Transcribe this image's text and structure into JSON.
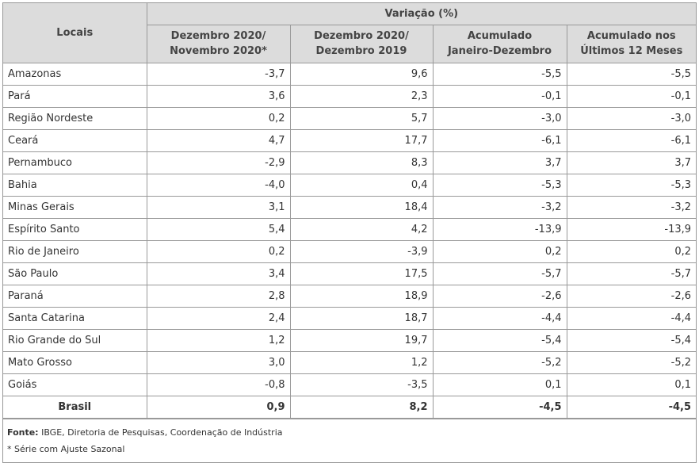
{
  "header": {
    "locais": "Locais",
    "variacao": "Variação (%)",
    "columns": [
      [
        "Dezembro 2020/",
        "Novembro 2020*"
      ],
      [
        "Dezembro 2020/",
        "Dezembro 2019"
      ],
      [
        "Acumulado",
        "Janeiro-Dezembro"
      ],
      [
        "Acumulado nos",
        "Últimos 12 Meses"
      ]
    ]
  },
  "rows": [
    {
      "local": "Amazonas",
      "values": [
        "-3,7",
        "9,6",
        "-5,5",
        "-5,5"
      ]
    },
    {
      "local": "Pará",
      "values": [
        "3,6",
        "2,3",
        "-0,1",
        "-0,1"
      ]
    },
    {
      "local": "Região Nordeste",
      "values": [
        "0,2",
        "5,7",
        "-3,0",
        "-3,0"
      ]
    },
    {
      "local": "Ceará",
      "values": [
        "4,7",
        "17,7",
        "-6,1",
        "-6,1"
      ]
    },
    {
      "local": "Pernambuco",
      "values": [
        "-2,9",
        "8,3",
        "3,7",
        "3,7"
      ]
    },
    {
      "local": "Bahia",
      "values": [
        "-4,0",
        "0,4",
        "-5,3",
        "-5,3"
      ]
    },
    {
      "local": "Minas Gerais",
      "values": [
        "3,1",
        "18,4",
        "-3,2",
        "-3,2"
      ]
    },
    {
      "local": "Espírito Santo",
      "values": [
        "5,4",
        "4,2",
        "-13,9",
        "-13,9"
      ]
    },
    {
      "local": "Rio de Janeiro",
      "values": [
        "0,2",
        "-3,9",
        "0,2",
        "0,2"
      ]
    },
    {
      "local": "São Paulo",
      "values": [
        "3,4",
        "17,5",
        "-5,7",
        "-5,7"
      ]
    },
    {
      "local": "Paraná",
      "values": [
        "2,8",
        "18,9",
        "-2,6",
        "-2,6"
      ]
    },
    {
      "local": "Santa Catarina",
      "values": [
        "2,4",
        "18,7",
        "-4,4",
        "-4,4"
      ]
    },
    {
      "local": "Rio Grande do Sul",
      "values": [
        "1,2",
        "19,7",
        "-5,4",
        "-5,4"
      ]
    },
    {
      "local": "Mato Grosso",
      "values": [
        "3,0",
        "1,2",
        "-5,2",
        "-5,2"
      ]
    },
    {
      "local": "Goiás",
      "values": [
        "-0,8",
        "-3,5",
        "0,1",
        "0,1"
      ]
    }
  ],
  "total": {
    "local": "Brasil",
    "values": [
      "0,9",
      "8,2",
      "-4,5",
      "-4,5"
    ]
  },
  "footer": {
    "fonte_label": "Fonte:",
    "fonte_text": " IBGE, Diretoria de Pesquisas, Coordenação de Indústria",
    "note": "* Série com Ajuste Sazonal"
  }
}
